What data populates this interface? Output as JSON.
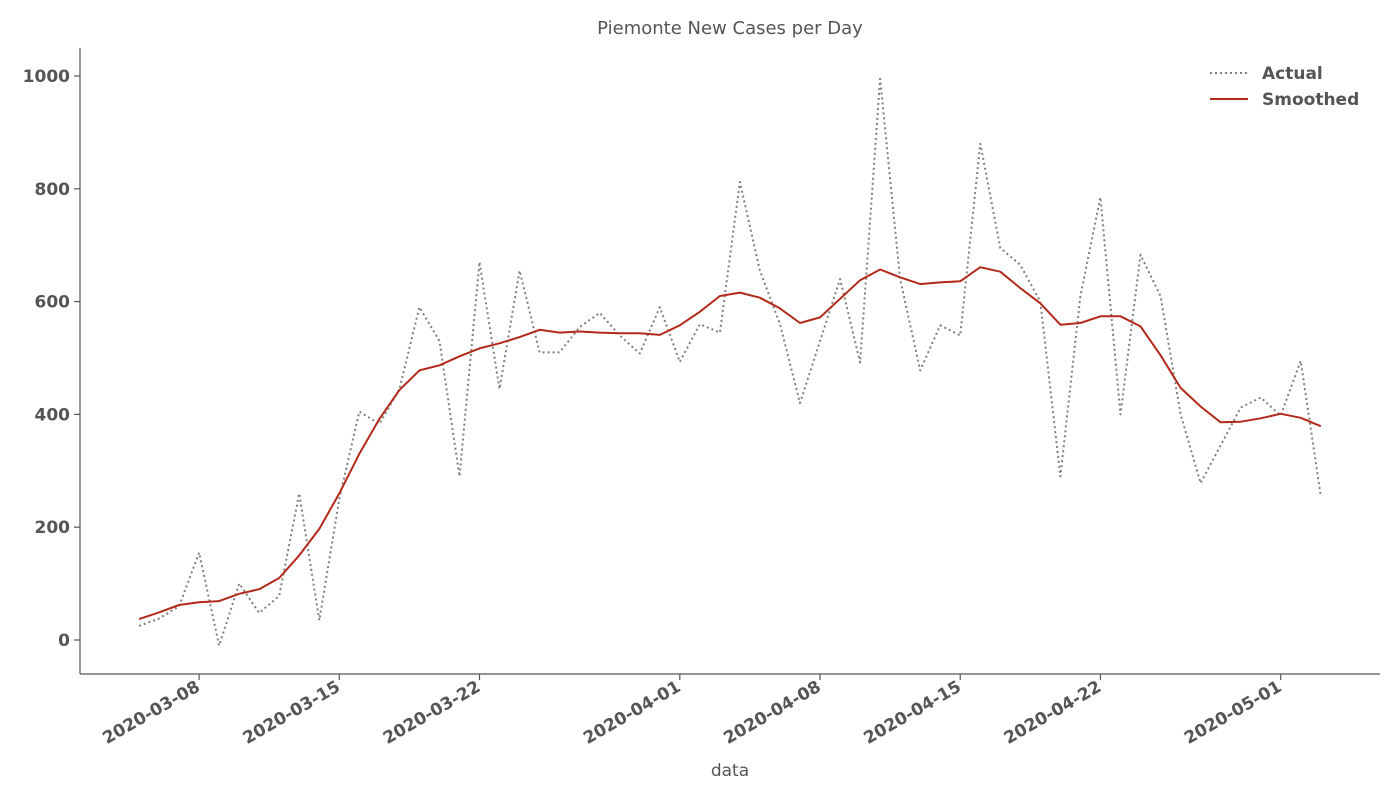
{
  "chart_data": {
    "type": "line",
    "title": "Piemonte New Cases per Day",
    "xlabel": "data",
    "ylabel": "",
    "x_start": "2020-03-05",
    "ylim": [
      -60,
      1050
    ],
    "yticks": [
      0,
      200,
      400,
      600,
      800,
      1000
    ],
    "xticks": [
      {
        "date": "2020-03-08",
        "label": "2020-03-08"
      },
      {
        "date": "2020-03-15",
        "label": "2020-03-15"
      },
      {
        "date": "2020-03-22",
        "label": "2020-03-22"
      },
      {
        "date": "2020-04-01",
        "label": "2020-04-01"
      },
      {
        "date": "2020-04-08",
        "label": "2020-04-08"
      },
      {
        "date": "2020-04-15",
        "label": "2020-04-15"
      },
      {
        "date": "2020-04-22",
        "label": "2020-04-22"
      },
      {
        "date": "2020-05-01",
        "label": "2020-05-01"
      }
    ],
    "legend": "top-right",
    "grid": false,
    "series": [
      {
        "name": "Actual",
        "style": "dotted",
        "color": "#7f7f7f",
        "values": [
          25,
          38,
          60,
          155,
          -10,
          100,
          48,
          78,
          260,
          35,
          250,
          405,
          383,
          445,
          590,
          530,
          290,
          670,
          445,
          655,
          510,
          510,
          555,
          580,
          540,
          508,
          590,
          493,
          560,
          545,
          812,
          655,
          560,
          420,
          530,
          640,
          492,
          995,
          640,
          478,
          558,
          540,
          880,
          695,
          665,
          600,
          290,
          610,
          785,
          400,
          683,
          610,
          400,
          278,
          345,
          412,
          430,
          398,
          495,
          255
        ]
      },
      {
        "name": "Smoothed",
        "style": "solid",
        "color": "#b22a1a",
        "values": [
          37,
          49,
          62,
          67,
          69,
          82,
          90,
          110,
          150,
          197,
          260,
          330,
          392,
          443,
          478,
          487,
          503,
          517,
          526,
          537,
          550,
          545,
          547,
          545,
          544,
          544,
          541,
          558,
          582,
          610,
          616,
          607,
          588,
          562,
          572,
          605,
          638,
          657,
          643,
          631,
          634,
          636,
          661,
          653,
          624,
          597,
          559,
          562,
          574,
          574,
          556,
          505,
          447,
          414,
          386,
          387,
          393,
          401,
          394,
          379
        ]
      }
    ]
  }
}
